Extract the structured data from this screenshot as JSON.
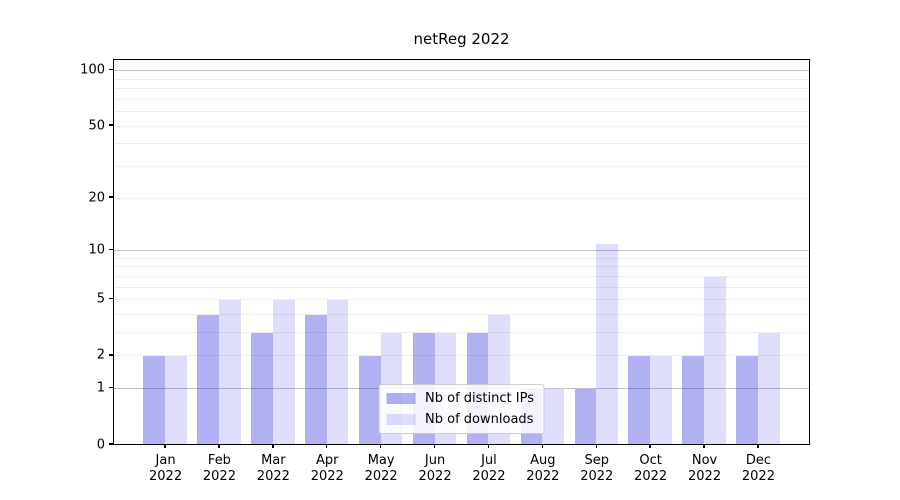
{
  "title": "netReg 2022",
  "chart_data": {
    "type": "bar",
    "title": "netReg 2022",
    "categories": [
      "Jan",
      "Feb",
      "Mar",
      "Apr",
      "May",
      "Jun",
      "Jul",
      "Aug",
      "Sep",
      "Oct",
      "Nov",
      "Dec"
    ],
    "category_year": "2022",
    "series": [
      {
        "name": "Nb of distinct IPs",
        "color": "rgba(48,48,224,0.38)",
        "values": [
          2,
          4,
          3,
          4,
          2,
          3,
          3,
          1,
          1,
          2,
          2,
          2
        ]
      },
      {
        "name": "Nb of downloads",
        "color": "rgba(48,48,224,0.16)",
        "values": [
          2,
          5,
          5,
          5,
          3,
          3,
          4,
          1,
          11,
          2,
          7,
          3
        ]
      }
    ],
    "yscale": "log1p",
    "ylim": [
      0,
      115
    ],
    "yticks": [
      0,
      1,
      2,
      5,
      10,
      20,
      50,
      100
    ],
    "grid_values": [
      1,
      2,
      3,
      4,
      5,
      6,
      7,
      8,
      9,
      10,
      20,
      30,
      40,
      50,
      60,
      70,
      80,
      90,
      100
    ],
    "major_grid_values": [
      1,
      10,
      100
    ],
    "grid": "both",
    "legend_position": "lower center"
  },
  "colors": {
    "bar_ips_hex": "#aeaef2",
    "bar_downloads_hex": "#dcdcf8",
    "grid_major": "#c2c2c6",
    "grid_minor": "#ededed",
    "axis": "#000000",
    "legend_border": "#cccccc"
  }
}
